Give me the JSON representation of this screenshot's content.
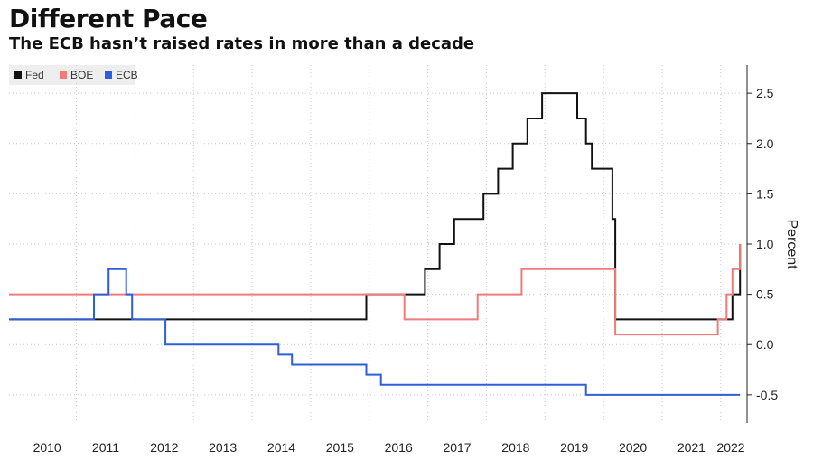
{
  "header": {
    "title": "Different Pace",
    "subtitle": "The ECB hasn’t raised rates in more than a decade"
  },
  "colors": {
    "fed": "#111111",
    "boe": "#f07b7b",
    "ecb": "#2f5fd8",
    "grid": "#c9c9c9"
  },
  "chart_data": {
    "type": "line",
    "title": "Different Pace",
    "subtitle": "The ECB hasn’t raised rates in more than a decade",
    "xlabel": "",
    "ylabel": "Percent",
    "xlim": [
      2009.85,
      2022.45
    ],
    "ylim": [
      -0.78,
      2.78
    ],
    "x_ticks": [
      "2010",
      "2011",
      "2012",
      "2013",
      "2014",
      "2015",
      "2016",
      "2017",
      "2018",
      "2019",
      "2020",
      "2021",
      "2022"
    ],
    "y_ticks": [
      {
        "value": 2.5,
        "label": "2.5"
      },
      {
        "value": 2.0,
        "label": "2.0"
      },
      {
        "value": 1.5,
        "label": "1.5"
      },
      {
        "value": 1.0,
        "label": "1.0"
      },
      {
        "value": 0.5,
        "label": "0.5"
      },
      {
        "value": 0.0,
        "label": "0.0"
      },
      {
        "value": -0.5,
        "label": "-0.5"
      }
    ],
    "grid": true,
    "legend_position": "top-left",
    "series": [
      {
        "name": "Fed",
        "color": "#111111",
        "step": true,
        "points": [
          [
            2009.85,
            0.25
          ],
          [
            2015.95,
            0.5
          ],
          [
            2016.95,
            0.75
          ],
          [
            2017.2,
            1.0
          ],
          [
            2017.45,
            1.25
          ],
          [
            2017.95,
            1.5
          ],
          [
            2018.2,
            1.75
          ],
          [
            2018.45,
            2.0
          ],
          [
            2018.7,
            2.25
          ],
          [
            2018.95,
            2.5
          ],
          [
            2019.55,
            2.25
          ],
          [
            2019.7,
            2.0
          ],
          [
            2019.8,
            1.75
          ],
          [
            2020.15,
            1.25
          ],
          [
            2020.2,
            0.25
          ],
          [
            2022.2,
            0.5
          ],
          [
            2022.33,
            1.0
          ]
        ]
      },
      {
        "name": "BOE",
        "color": "#f07b7b",
        "step": true,
        "points": [
          [
            2009.85,
            0.5
          ],
          [
            2016.6,
            0.25
          ],
          [
            2017.85,
            0.5
          ],
          [
            2018.6,
            0.75
          ],
          [
            2020.2,
            0.1
          ],
          [
            2021.95,
            0.25
          ],
          [
            2022.1,
            0.5
          ],
          [
            2022.2,
            0.75
          ],
          [
            2022.33,
            1.0
          ]
        ]
      },
      {
        "name": "ECB",
        "color": "#2f5fd8",
        "step": true,
        "points": [
          [
            2009.85,
            0.25
          ],
          [
            2011.3,
            0.5
          ],
          [
            2011.55,
            0.75
          ],
          [
            2011.85,
            0.5
          ],
          [
            2011.95,
            0.25
          ],
          [
            2012.52,
            0.0
          ],
          [
            2014.45,
            -0.1
          ],
          [
            2014.68,
            -0.2
          ],
          [
            2015.95,
            -0.3
          ],
          [
            2016.2,
            -0.4
          ],
          [
            2019.7,
            -0.5
          ],
          [
            2022.33,
            -0.5
          ]
        ]
      }
    ]
  }
}
